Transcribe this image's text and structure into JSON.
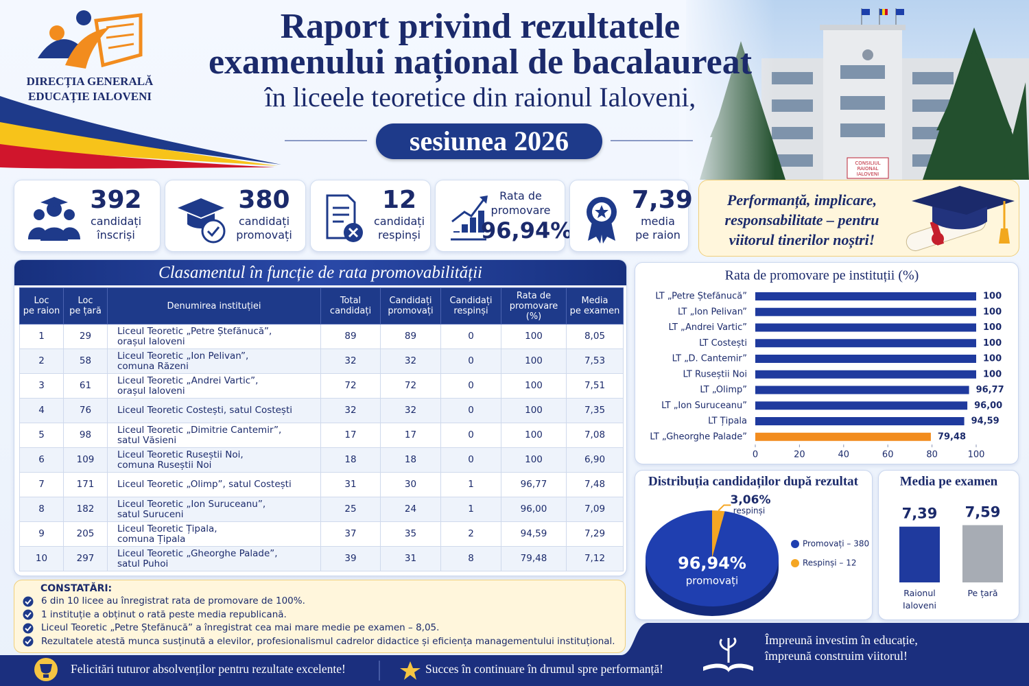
{
  "logo": {
    "line1": "DIRECȚIA GENERALĂ",
    "line2": "EDUCAȚIE IALOVENI"
  },
  "header": {
    "title1": "Raport privind rezultatele",
    "title2": "examenului național de bacalaureat",
    "subtitle": "în liceele teoretice din raionul Ialoveni,",
    "session": "sesiunea 2026"
  },
  "building_sign": [
    "CONSILIUL",
    "RAIONAL",
    "IALOVENI"
  ],
  "stats": [
    {
      "value": "392",
      "label": [
        "candidați",
        "înscriși"
      ]
    },
    {
      "value": "380",
      "label": [
        "candidați",
        "promovați"
      ]
    },
    {
      "value": "12",
      "label": [
        "candidați",
        "respinși"
      ]
    },
    {
      "heading": [
        "Rata de",
        "promovare"
      ],
      "value": "96,94%"
    },
    {
      "value": "7,39",
      "label": [
        "media",
        "pe raion"
      ]
    }
  ],
  "motto": [
    "Performanță, implicare,",
    "responsabilitate – pentru",
    "viitorul tinerilor noștri!"
  ],
  "table": {
    "title": "Clasamentul în funcție de rata promovabilității",
    "headers": [
      [
        "Loc",
        "pe raion"
      ],
      [
        "Loc",
        "pe țară"
      ],
      [
        "Denumirea instituției"
      ],
      [
        "Total",
        "candidați"
      ],
      [
        "Candidați",
        "promovați"
      ],
      [
        "Candidați",
        "respinși"
      ],
      [
        "Rata de",
        "promovare",
        "(%)"
      ],
      [
        "Media",
        "pe examen"
      ]
    ],
    "rows": [
      [
        "1",
        "29",
        [
          "Liceul Teoretic „Petre Ștefănucă”,",
          "orașul Ialoveni"
        ],
        "89",
        "89",
        "0",
        "100",
        "8,05"
      ],
      [
        "2",
        "58",
        [
          "Liceul Teoretic „Ion Pelivan”,",
          "comuna Răzeni"
        ],
        "32",
        "32",
        "0",
        "100",
        "7,53"
      ],
      [
        "3",
        "61",
        [
          "Liceul Teoretic „Andrei Vartic”,",
          "orașul Ialoveni"
        ],
        "72",
        "72",
        "0",
        "100",
        "7,51"
      ],
      [
        "4",
        "76",
        [
          "Liceul Teoretic Costești, satul Costești"
        ],
        "32",
        "32",
        "0",
        "100",
        "7,35"
      ],
      [
        "5",
        "98",
        [
          "Liceul Teoretic „Dimitrie Cantemir”,",
          "satul Văsieni"
        ],
        "17",
        "17",
        "0",
        "100",
        "7,08"
      ],
      [
        "6",
        "109",
        [
          "Liceul Teoretic Ruseștii Noi,",
          "comuna Ruseștii Noi"
        ],
        "18",
        "18",
        "0",
        "100",
        "6,90"
      ],
      [
        "7",
        "171",
        [
          "Liceul Teoretic „Olimp”, satul Costești"
        ],
        "31",
        "30",
        "1",
        "96,77",
        "7,48"
      ],
      [
        "8",
        "182",
        [
          "Liceul Teoretic „Ion Suruceanu”,",
          "satul Suruceni"
        ],
        "25",
        "24",
        "1",
        "96,00",
        "7,09"
      ],
      [
        "9",
        "205",
        [
          "Liceul Teoretic Țipala,",
          "comuna Țipala"
        ],
        "37",
        "35",
        "2",
        "94,59",
        "7,29"
      ],
      [
        "10",
        "297",
        [
          "Liceul Teoretic „Gheorghe Palade”,",
          "satul Puhoi"
        ],
        "39",
        "31",
        "8",
        "79,48",
        "7,12"
      ]
    ]
  },
  "bar_chart": {
    "type": "bar",
    "title": "Rata de promovare pe instituții (%)",
    "categories": [
      "LT „Petre Ștefănucă”",
      "LT „Ion Pelivan”",
      "LT „Andrei Vartic”",
      "LT Costești",
      "LT „D. Cantemir”",
      "LT Ruseștii Noi",
      "LT „Olimp”",
      "LT „Ion Suruceanu”",
      "LT Țipala",
      "LT „Gheorghe Palade”"
    ],
    "values": [
      100,
      100,
      100,
      100,
      100,
      100,
      96.77,
      96.0,
      94.59,
      79.48
    ],
    "value_labels": [
      "100",
      "100",
      "100",
      "100",
      "100",
      "100",
      "96,77",
      "96,00",
      "94,59",
      "79,48"
    ],
    "colors": [
      "#1f3a9e",
      "#1f3a9e",
      "#1f3a9e",
      "#1f3a9e",
      "#1f3a9e",
      "#1f3a9e",
      "#1f3a9e",
      "#1f3a9e",
      "#1f3a9e",
      "#f28c1e"
    ],
    "xlim": [
      0,
      100
    ],
    "xticks": [
      0,
      20,
      40,
      60,
      80,
      100
    ]
  },
  "pie_chart": {
    "type": "pie",
    "title": "Distribuția candidaților după rezultat",
    "values": [
      96.94,
      3.06
    ],
    "value_labels": [
      "96,94%",
      "3,06%"
    ],
    "slice_labels": [
      "promovați",
      "respinși"
    ],
    "legend": [
      "Promovați – 380",
      "Respinși – 12"
    ],
    "colors": [
      "#1f3fb0",
      "#f5a623"
    ]
  },
  "media_chart": {
    "type": "bar",
    "title": "Media pe examen",
    "categories": [
      "Raionul Ialoveni",
      "Pe țară"
    ],
    "values": [
      7.39,
      7.59
    ],
    "value_labels": [
      "7,39",
      "7,59"
    ],
    "colors": [
      "#1f3a9e",
      "#a7acb4"
    ]
  },
  "findings": {
    "title": "CONSTATĂRI:",
    "items": [
      "6 din 10 licee au înregistrat rata de promovare de 100%.",
      "1 instituție a obținut o rată peste media republicană.",
      "Liceul Teoretic „Petre Ștefănucă” a înregistrat cea mai mare medie pe examen – 8,05.",
      "Rezultatele atestă munca susținută a elevilor, profesionalismul cadrelor didactice și eficiența managementului instituțional."
    ]
  },
  "footer": {
    "left": "Felicitări tuturor absolvenților pentru rezultate excelente!",
    "middle": "Succes în continuare în drumul spre performanță!",
    "right": [
      "Împreună investim în educație,",
      "împreună construim viitorul!"
    ]
  }
}
